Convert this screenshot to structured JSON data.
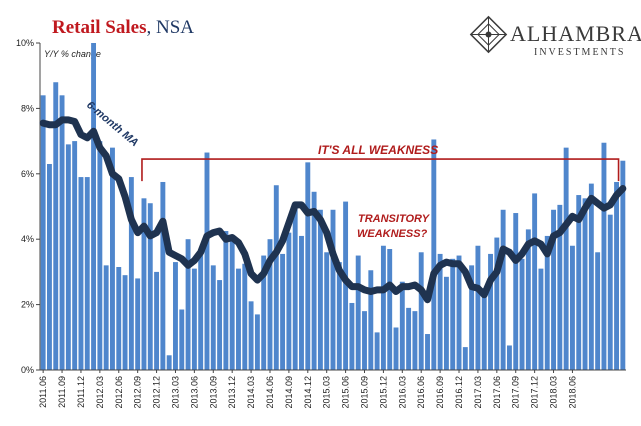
{
  "header": {
    "title_main": "Retail Sales",
    "title_sub": ", NSA",
    "brand_name": "ALHAMBRA",
    "brand_sub": "INVESTMENTS"
  },
  "colors": {
    "bar": "#4f86cc",
    "ma_line": "#1f3350",
    "annotation": "#b01c1c",
    "title_red": "#c0191f",
    "title_blue": "#1f3864"
  },
  "chart_data": {
    "type": "bar",
    "title": "Retail Sales, NSA",
    "ylabel": "Y/Y % change",
    "ylim": [
      0,
      10
    ],
    "y_ticks": [
      "0%",
      "2%",
      "4%",
      "6%",
      "8%",
      "10%"
    ],
    "x_tick_labels": [
      "2011.06",
      "2011.09",
      "2011.12",
      "2012.03",
      "2012.06",
      "2012.09",
      "2012.12",
      "2013.03",
      "2013.06",
      "2013.09",
      "2013.12",
      "2014.03",
      "2014.06",
      "2014.09",
      "2014.12",
      "2015.03",
      "2015.06",
      "2015.09",
      "2015.12",
      "2016.03",
      "2016.06",
      "2016.09",
      "2016.12",
      "2017.03",
      "2017.06",
      "2017.09",
      "2017.12",
      "2018.03",
      "2018.06"
    ],
    "start_month": "2011.06",
    "end_month": "2018.08",
    "series": [
      {
        "type": "bar",
        "values": [
          8.4,
          6.3,
          8.8,
          8.4,
          6.9,
          7.0,
          5.9,
          5.9,
          10.0,
          7.0,
          3.2,
          6.8,
          3.15,
          2.9,
          5.9,
          2.8,
          5.25,
          5.1,
          3.0,
          5.75,
          0.45,
          3.3,
          1.85,
          4.0,
          3.1,
          3.6,
          6.65,
          3.2,
          2.75,
          4.25,
          4.0,
          3.1,
          3.25,
          2.1,
          1.7,
          3.5,
          4.0,
          5.65,
          3.55,
          4.2,
          4.95,
          4.1,
          6.35,
          5.45,
          4.9,
          3.6,
          4.9,
          3.3,
          5.15,
          2.05,
          3.5,
          1.8,
          3.05,
          1.15,
          3.8,
          3.7,
          1.3,
          2.7,
          1.9,
          1.8,
          3.6,
          1.1,
          7.05,
          3.55,
          2.85,
          3.4,
          3.5,
          0.7,
          3.2,
          3.8,
          2.5,
          3.55,
          4.05,
          4.9,
          0.75,
          4.8,
          3.4,
          4.3,
          5.4,
          3.1,
          4.1,
          4.9,
          5.05,
          6.8,
          3.8,
          5.35,
          5.25,
          5.7,
          3.6,
          6.95,
          4.75,
          5.75,
          6.4
        ]
      },
      {
        "type": "line",
        "name": "6-month MA",
        "values": [
          7.55,
          7.5,
          7.5,
          7.65,
          7.65,
          7.6,
          7.2,
          7.1,
          7.3,
          6.8,
          6.55,
          6.0,
          5.85,
          5.3,
          4.6,
          4.2,
          4.4,
          4.1,
          4.2,
          4.55,
          3.6,
          3.5,
          3.4,
          3.2,
          3.35,
          3.6,
          4.1,
          4.2,
          4.25,
          4.0,
          4.05,
          3.9,
          3.55,
          2.95,
          2.75,
          2.95,
          3.35,
          3.6,
          3.95,
          4.5,
          5.05,
          5.05,
          4.8,
          4.85,
          4.6,
          4.2,
          3.55,
          3.05,
          2.75,
          2.55,
          2.55,
          2.45,
          2.4,
          2.45,
          2.45,
          2.6,
          2.4,
          2.55,
          2.55,
          2.6,
          2.45,
          2.15,
          2.95,
          3.2,
          3.3,
          3.25,
          3.25,
          3.0,
          2.55,
          2.5,
          2.3,
          2.75,
          3.0,
          3.7,
          3.6,
          3.35,
          3.55,
          3.85,
          3.95,
          3.85,
          3.55,
          4.1,
          4.2,
          4.45,
          4.7,
          4.6,
          4.95,
          5.25,
          5.1,
          4.95,
          5.05,
          5.35,
          5.55
        ]
      }
    ],
    "annotations": {
      "ma_label": "6-month MA",
      "weakness_label": "IT'S ALL WEAKNESS",
      "transitory_line1": "TRANSITORY",
      "transitory_line2": "WEAKNESS?",
      "bracket_level": 6.45
    },
    "grid": false,
    "legend": "none"
  }
}
